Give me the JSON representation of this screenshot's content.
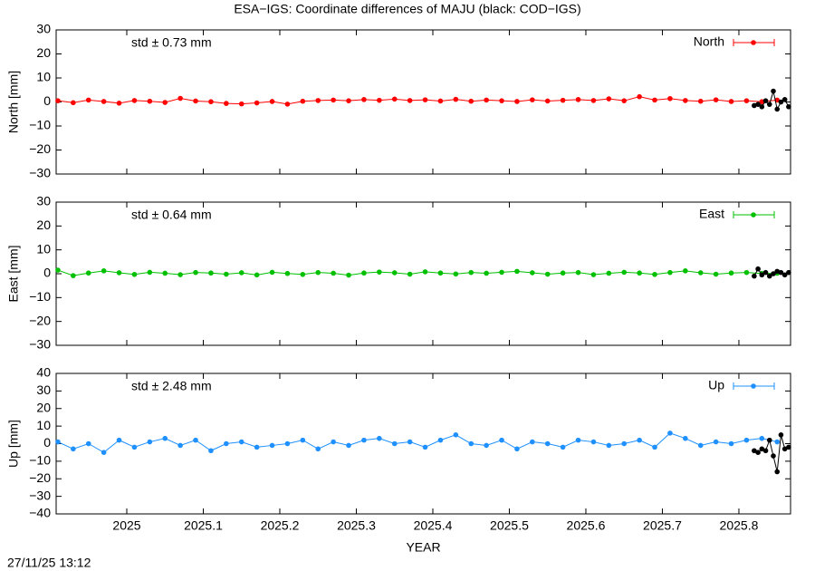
{
  "title": "ESA−IGS: Coordinate differences of MAJU (black: COD−IGS)",
  "timestamp": "27/11/25 13:12",
  "chart_data": [
    {
      "type": "line",
      "ylabel": "North [mm]",
      "annotation": "std ± 0.73 mm",
      "legend": "top right",
      "xlim": [
        2024.9077,
        2025.8675
      ],
      "xticks": [
        2025,
        2025.1,
        2025.2,
        2025.3,
        2025.4,
        2025.5,
        2025.6,
        2025.7,
        2025.8
      ],
      "ylim": [
        -30,
        30
      ],
      "yticks": [
        {
          "value": -30,
          "label": "−30"
        },
        {
          "value": -20,
          "label": "−20"
        },
        {
          "value": -10,
          "label": "−10"
        },
        0,
        10,
        20,
        30
      ],
      "series": [
        {
          "name": "North",
          "color": "#ff0000",
          "x": [
            2024.91,
            2024.93,
            2024.95,
            2024.97,
            2024.99,
            2025.01,
            2025.03,
            2025.05,
            2025.07,
            2025.09,
            2025.11,
            2025.13,
            2025.15,
            2025.17,
            2025.19,
            2025.21,
            2025.23,
            2025.25,
            2025.27,
            2025.29,
            2025.31,
            2025.33,
            2025.35,
            2025.37,
            2025.39,
            2025.41,
            2025.43,
            2025.45,
            2025.47,
            2025.49,
            2025.51,
            2025.53,
            2025.55,
            2025.57,
            2025.59,
            2025.61,
            2025.63,
            2025.65,
            2025.67,
            2025.69,
            2025.71,
            2025.73,
            2025.75,
            2025.77,
            2025.79,
            2025.81,
            2025.83,
            2025.85
          ],
          "values": [
            0.5,
            -0.3,
            0.8,
            0.2,
            -0.5,
            0.6,
            0.3,
            -0.2,
            1.5,
            0.4,
            0.1,
            -0.6,
            -0.8,
            -0.4,
            0.2,
            -0.9,
            0.3,
            0.6,
            0.8,
            0.5,
            1.0,
            0.7,
            1.2,
            0.6,
            0.9,
            0.4,
            1.1,
            0.3,
            0.8,
            0.5,
            0.2,
            0.9,
            0.4,
            0.7,
            1.0,
            0.6,
            1.3,
            0.5,
            2.2,
            0.8,
            1.4,
            0.6,
            0.3,
            0.9,
            0.2,
            0.5,
            0.1,
            0.8
          ]
        },
        {
          "color": "#000000",
          "x": [
            2025.82,
            2025.825,
            2025.83,
            2025.835,
            2025.84,
            2025.845,
            2025.85,
            2025.855,
            2025.86,
            2025.865
          ],
          "values": [
            -1.5,
            -1,
            -2,
            0.5,
            -1,
            4.5,
            -3,
            0,
            1,
            -2
          ]
        }
      ]
    },
    {
      "type": "line",
      "ylabel": "East [mm]",
      "annotation": "std ± 0.64 mm",
      "legend": "top right",
      "xlim": [
        2024.9077,
        2025.8675
      ],
      "xticks": [
        2025,
        2025.1,
        2025.2,
        2025.3,
        2025.4,
        2025.5,
        2025.6,
        2025.7,
        2025.8
      ],
      "ylim": [
        -30,
        30
      ],
      "yticks": [
        {
          "value": -30,
          "label": "−30"
        },
        {
          "value": -20,
          "label": "−20"
        },
        {
          "value": -10,
          "label": "−10"
        },
        0,
        10,
        20,
        30
      ],
      "series": [
        {
          "name": "East",
          "color": "#00c000",
          "x": [
            2024.91,
            2024.93,
            2024.95,
            2024.97,
            2024.99,
            2025.01,
            2025.03,
            2025.05,
            2025.07,
            2025.09,
            2025.11,
            2025.13,
            2025.15,
            2025.17,
            2025.19,
            2025.21,
            2025.23,
            2025.25,
            2025.27,
            2025.29,
            2025.31,
            2025.33,
            2025.35,
            2025.37,
            2025.39,
            2025.41,
            2025.43,
            2025.45,
            2025.47,
            2025.49,
            2025.51,
            2025.53,
            2025.55,
            2025.57,
            2025.59,
            2025.61,
            2025.63,
            2025.65,
            2025.67,
            2025.69,
            2025.71,
            2025.73,
            2025.75,
            2025.77,
            2025.79,
            2025.81,
            2025.83,
            2025.85
          ],
          "values": [
            1.5,
            -0.8,
            0.3,
            1.2,
            0.4,
            -0.3,
            0.6,
            0.2,
            -0.4,
            0.5,
            0.3,
            -0.2,
            0.4,
            -0.5,
            0.6,
            0.1,
            -0.3,
            0.5,
            0.2,
            -0.6,
            0.3,
            0.7,
            0.4,
            -0.2,
            0.8,
            0.3,
            -0.1,
            0.5,
            0.2,
            0.6,
            1.0,
            0.4,
            -0.2,
            0.3,
            0.5,
            -0.4,
            0.2,
            0.6,
            0.3,
            -0.3,
            0.5,
            1.2,
            0.4,
            -0.2,
            0.3,
            0.5,
            0.1,
            0.2
          ]
        },
        {
          "color": "#000000",
          "x": [
            2025.82,
            2025.825,
            2025.83,
            2025.835,
            2025.84,
            2025.845,
            2025.85,
            2025.855,
            2025.86,
            2025.865
          ],
          "values": [
            -1,
            2,
            -0.5,
            0.5,
            -1,
            0,
            1,
            0.5,
            -0.5,
            0.5
          ]
        }
      ]
    },
    {
      "type": "line",
      "ylabel": "Up [mm]",
      "annotation": "std ± 2.48 mm",
      "legend": "top right",
      "xlabel": "YEAR",
      "xlim": [
        2024.9077,
        2025.8675
      ],
      "xticks": [
        2025,
        2025.1,
        2025.2,
        2025.3,
        2025.4,
        2025.5,
        2025.6,
        2025.7,
        2025.8
      ],
      "ylim": [
        -40,
        40
      ],
      "yticks": [
        {
          "value": -40,
          "label": "−40"
        },
        {
          "value": -30,
          "label": "−30"
        },
        {
          "value": -20,
          "label": "−20"
        },
        {
          "value": -10,
          "label": "−10"
        },
        0,
        10,
        20,
        30,
        40
      ],
      "series": [
        {
          "name": "Up",
          "color": "#1e90ff",
          "x": [
            2024.91,
            2024.93,
            2024.95,
            2024.97,
            2024.99,
            2025.01,
            2025.03,
            2025.05,
            2025.07,
            2025.09,
            2025.11,
            2025.13,
            2025.15,
            2025.17,
            2025.19,
            2025.21,
            2025.23,
            2025.25,
            2025.27,
            2025.29,
            2025.31,
            2025.33,
            2025.35,
            2025.37,
            2025.39,
            2025.41,
            2025.43,
            2025.45,
            2025.47,
            2025.49,
            2025.51,
            2025.53,
            2025.55,
            2025.57,
            2025.59,
            2025.61,
            2025.63,
            2025.65,
            2025.67,
            2025.69,
            2025.71,
            2025.73,
            2025.75,
            2025.77,
            2025.79,
            2025.81,
            2025.83,
            2025.85
          ],
          "values": [
            1,
            -3,
            0,
            -5,
            2,
            -2,
            1,
            3,
            -1,
            2,
            -4,
            0,
            1,
            -2,
            -1,
            0,
            2,
            -3,
            1,
            -1,
            2,
            3,
            0,
            1,
            -2,
            2,
            5,
            0,
            -1,
            2,
            -3,
            1,
            0,
            -2,
            2,
            1,
            -1,
            0,
            2,
            -2,
            6,
            3,
            -1,
            1,
            0,
            2,
            3,
            1
          ]
        },
        {
          "color": "#000000",
          "x": [
            2025.82,
            2025.825,
            2025.83,
            2025.835,
            2025.84,
            2025.845,
            2025.85,
            2025.855,
            2025.86,
            2025.865
          ],
          "values": [
            -4,
            -5,
            -3,
            -4,
            2,
            -7,
            -16,
            5,
            -3,
            -2
          ]
        }
      ]
    }
  ]
}
